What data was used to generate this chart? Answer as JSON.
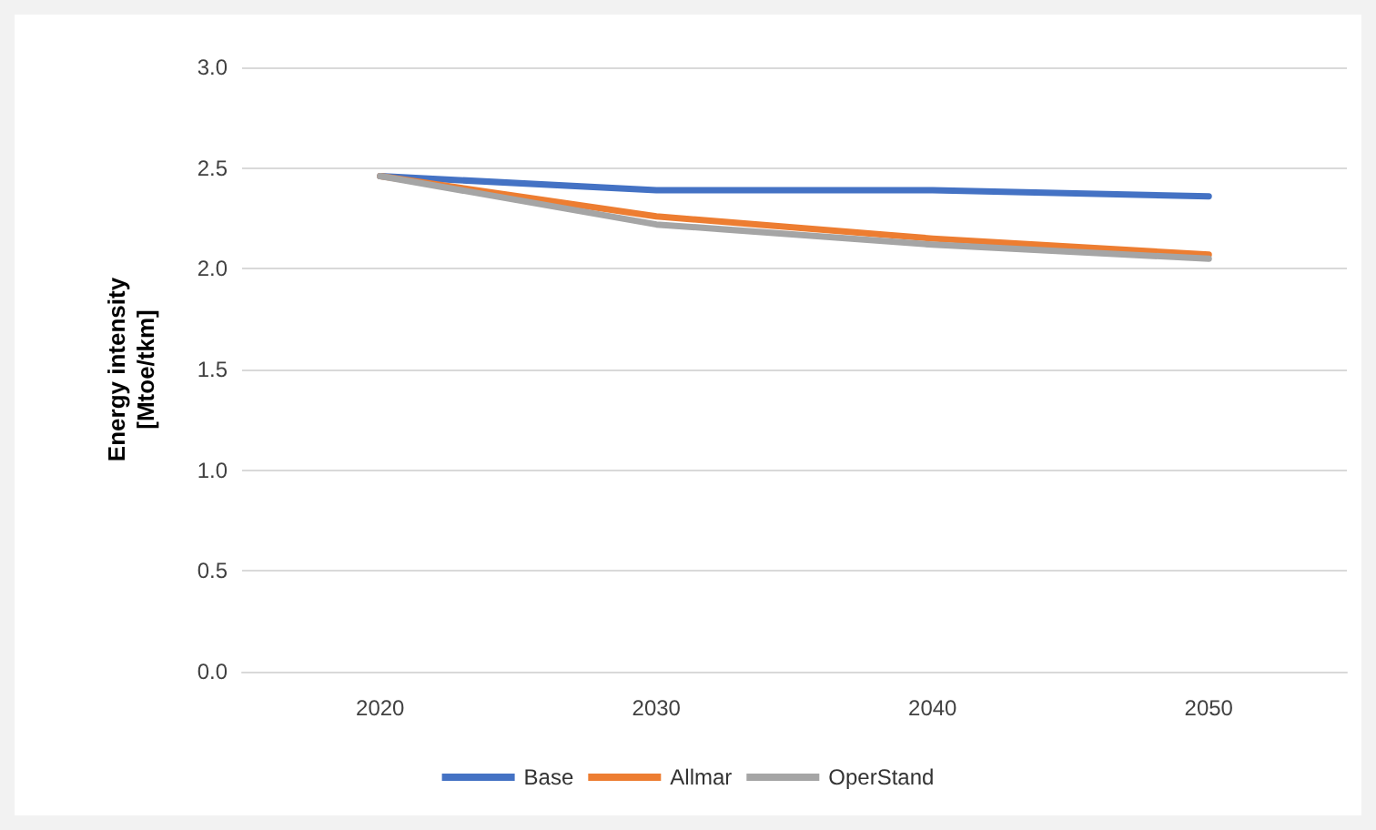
{
  "chart_data": {
    "type": "line",
    "ylabel": "Energy intensity\n[Mtoe/tkm]",
    "categories": [
      "2020",
      "2030",
      "2040",
      "2050"
    ],
    "series": [
      {
        "name": "Base",
        "color": "#4472c4",
        "values": [
          2.46,
          2.39,
          2.39,
          2.36
        ]
      },
      {
        "name": "Allmar",
        "color": "#ed7d31",
        "values": [
          2.46,
          2.26,
          2.15,
          2.07
        ]
      },
      {
        "name": "OperStand",
        "color": "#a5a5a5",
        "values": [
          2.46,
          2.22,
          2.12,
          2.05
        ]
      }
    ],
    "ylim": [
      0,
      3
    ],
    "yticks": [
      {
        "value": 0,
        "label": "0.0"
      },
      {
        "value": 0.5,
        "label": "0.5"
      },
      {
        "value": 1,
        "label": "1.0"
      },
      {
        "value": 1.5,
        "label": "1.5"
      },
      {
        "value": 2,
        "label": "2.0"
      },
      {
        "value": 2.5,
        "label": "2.5"
      },
      {
        "value": 3,
        "label": "3.0"
      }
    ],
    "grid": "y",
    "legend": "bottom",
    "marker": "none",
    "line_style": "solid"
  }
}
